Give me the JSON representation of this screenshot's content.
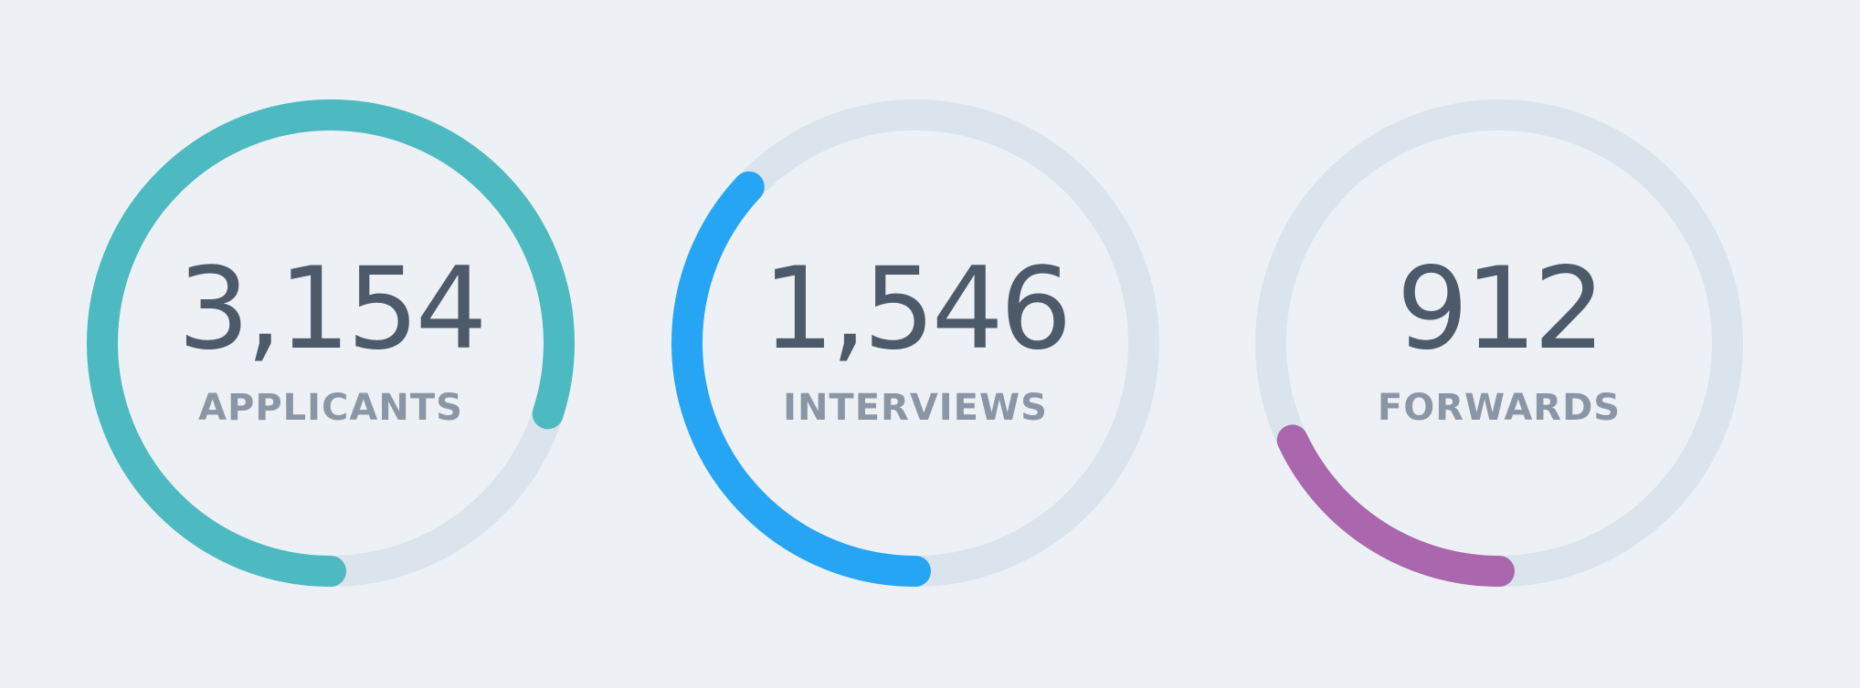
{
  "stats": [
    {
      "value": "3,154",
      "label": "APPLICANTS",
      "progress_percent": 80,
      "color": "#4db9c0"
    },
    {
      "value": "1,546",
      "label": "INTERVIEWS",
      "progress_percent": 37,
      "color": "#26a5f5"
    },
    {
      "value": "912",
      "label": "FORWARDS",
      "progress_percent": 18,
      "color": "#aa67ad"
    }
  ],
  "colors": {
    "background": "#edf1f6",
    "track": "#dbe4ec",
    "value_text": "#4d5a6a",
    "label_text": "#8a96a5"
  }
}
